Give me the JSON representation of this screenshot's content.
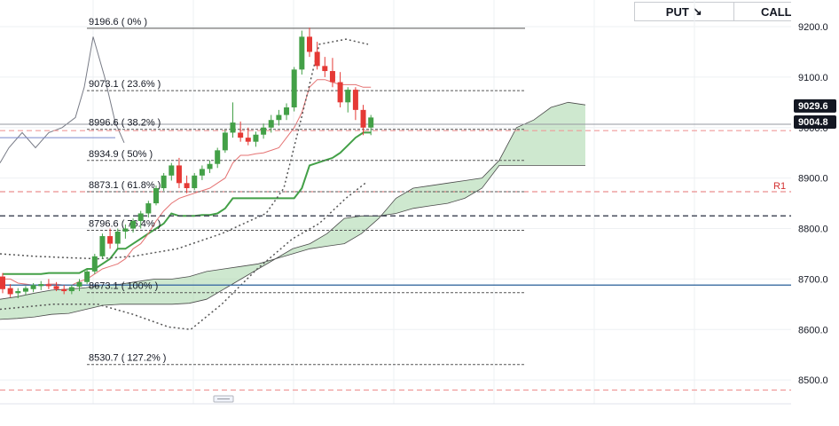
{
  "buttons": {
    "put_label": "PUT",
    "put_icon": "arrow-down-right-icon",
    "call_label": "CALL",
    "call_icon": "arrow-up-right-icon"
  },
  "chart_data": {
    "type": "candlestick",
    "y_ticks": [
      "9200.0",
      "9100.0",
      "9000.0",
      "8900.0",
      "8800.0",
      "8700.0",
      "8600.0",
      "8500.0"
    ],
    "y_tick_values": [
      9200,
      9100,
      9000,
      8900,
      8800,
      8700,
      8600,
      8500
    ],
    "ylim": [
      8460,
      9235
    ],
    "fib_levels": [
      {
        "value": 9196.6,
        "label": "9196.6 ( 0% )"
      },
      {
        "value": 9073.1,
        "label": "9073.1 ( 23.6% )"
      },
      {
        "value": 8996.6,
        "label": "8996.6 ( 38.2% )"
      },
      {
        "value": 8934.9,
        "label": "8934.9 ( 50% )"
      },
      {
        "value": 8873.1,
        "label": "8873.1 ( 61.8% )"
      },
      {
        "value": 8796.6,
        "label": "8796.6 ( 76.4% )"
      },
      {
        "value": 8673.1,
        "label": "8673.1 ( 100% )"
      },
      {
        "value": 8530.7,
        "label": "8530.7 ( 127.2% )"
      }
    ],
    "pivot_label": "R1",
    "horizontal_lines": {
      "blue": 8688,
      "r1": 8873,
      "dark_dashed": 8825,
      "red_top": 8994,
      "red_bottom": 8480
    },
    "price_tags": [
      {
        "value": 9029.6,
        "label": "9029.6",
        "color": "#131722"
      },
      {
        "value": 9004.8,
        "label": "9004.8",
        "color": "#131722"
      }
    ],
    "candles": [
      [
        8705,
        8712,
        8672,
        8680
      ],
      [
        8682,
        8690,
        8664,
        8670
      ],
      [
        8672,
        8682,
        8662,
        8676
      ],
      [
        8675,
        8686,
        8668,
        8682
      ],
      [
        8680,
        8692,
        8674,
        8688
      ],
      [
        8686,
        8696,
        8678,
        8690
      ],
      [
        8689,
        8700,
        8680,
        8686
      ],
      [
        8686,
        8694,
        8676,
        8680
      ],
      [
        8680,
        8688,
        8670,
        8676
      ],
      [
        8676,
        8688,
        8670,
        8684
      ],
      [
        8685,
        8700,
        8676,
        8694
      ],
      [
        8694,
        8720,
        8690,
        8715
      ],
      [
        8715,
        8750,
        8710,
        8745
      ],
      [
        8745,
        8790,
        8740,
        8785
      ],
      [
        8785,
        8800,
        8760,
        8770
      ],
      [
        8770,
        8800,
        8760,
        8794
      ],
      [
        8794,
        8808,
        8780,
        8800
      ],
      [
        8800,
        8820,
        8792,
        8815
      ],
      [
        8815,
        8835,
        8800,
        8830
      ],
      [
        8830,
        8855,
        8822,
        8850
      ],
      [
        8850,
        8885,
        8846,
        8880
      ],
      [
        8880,
        8910,
        8875,
        8905
      ],
      [
        8905,
        8930,
        8895,
        8925
      ],
      [
        8925,
        8940,
        8880,
        8890
      ],
      [
        8890,
        8905,
        8870,
        8880
      ],
      [
        8880,
        8910,
        8876,
        8905
      ],
      [
        8905,
        8925,
        8896,
        8918
      ],
      [
        8918,
        8935,
        8910,
        8928
      ],
      [
        8928,
        8960,
        8920,
        8955
      ],
      [
        8955,
        8995,
        8950,
        8990
      ],
      [
        8990,
        9050,
        8980,
        9010
      ],
      [
        8990,
        9012,
        8972,
        8980
      ],
      [
        8980,
        9000,
        8965,
        8972
      ],
      [
        8972,
        8992,
        8962,
        8986
      ],
      [
        8986,
        9008,
        8978,
        9000
      ],
      [
        9000,
        9025,
        8990,
        9015
      ],
      [
        9015,
        9035,
        9004,
        9025
      ],
      [
        9025,
        9048,
        9015,
        9040
      ],
      [
        9040,
        9120,
        9032,
        9115
      ],
      [
        9115,
        9192,
        9105,
        9180
      ],
      [
        9180,
        9198,
        9140,
        9150
      ],
      [
        9150,
        9170,
        9115,
        9122
      ],
      [
        9122,
        9140,
        9100,
        9112
      ],
      [
        9112,
        9138,
        9080,
        9090
      ],
      [
        9090,
        9110,
        9040,
        9050
      ],
      [
        9050,
        9080,
        9030,
        9075
      ],
      [
        9075,
        9080,
        9015,
        9035
      ],
      [
        9035,
        9045,
        8985,
        9000
      ],
      [
        9000,
        9025,
        8985,
        9020
      ]
    ],
    "cloud_top": [
      8660,
      8665,
      8672,
      8678,
      8680,
      8683,
      8688,
      8690,
      8695,
      8700,
      8700,
      8705,
      8715,
      8720,
      8725,
      8730,
      8740,
      8750,
      8760,
      8765,
      8770,
      8790,
      8820,
      8860,
      8880,
      8885,
      8890,
      8895,
      8900,
      8935,
      9000,
      9015,
      9040,
      9050,
      9045
    ],
    "cloud_bottom": [
      8620,
      8622,
      8625,
      8630,
      8632,
      8640,
      8648,
      8650,
      8650,
      8650,
      8650,
      8652,
      8660,
      8680,
      8700,
      8720,
      8740,
      8760,
      8770,
      8790,
      8820,
      8825,
      8825,
      8830,
      8840,
      8845,
      8850,
      8860,
      8880,
      8925,
      8925,
      8925,
      8925,
      8925,
      8925
    ]
  }
}
